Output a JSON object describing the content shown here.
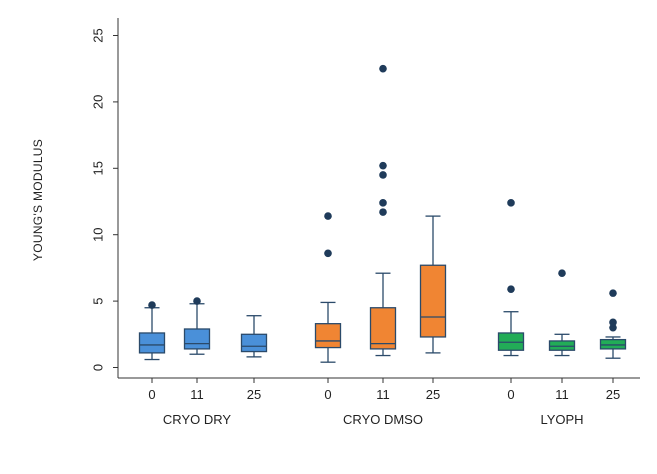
{
  "chart_data": {
    "type": "box",
    "title": "",
    "xlabel": "",
    "ylabel": "YOUNG'S MODULUS",
    "ylim": [
      -0.8,
      26
    ],
    "yticks": [
      0,
      5,
      10,
      15,
      20,
      25
    ],
    "grid": false,
    "legend": "none",
    "groups": [
      {
        "name": "CRYO DRY",
        "color": "#4a90d9",
        "boxes": [
          {
            "category": "0",
            "whisker_low": 0.6,
            "q1": 1.1,
            "median": 1.7,
            "q3": 2.6,
            "whisker_high": 4.5,
            "outliers": [
              4.7
            ]
          },
          {
            "category": "11",
            "whisker_low": 1.0,
            "q1": 1.4,
            "median": 1.8,
            "q3": 2.9,
            "whisker_high": 4.8,
            "outliers": [
              5.0
            ]
          },
          {
            "category": "25",
            "whisker_low": 0.8,
            "q1": 1.2,
            "median": 1.6,
            "q3": 2.5,
            "whisker_high": 3.9,
            "outliers": []
          }
        ]
      },
      {
        "name": "CRYO DMSO",
        "color": "#f08533",
        "boxes": [
          {
            "category": "0",
            "whisker_low": 0.4,
            "q1": 1.5,
            "median": 2.0,
            "q3": 3.3,
            "whisker_high": 4.9,
            "outliers": [
              8.6,
              11.4
            ]
          },
          {
            "category": "11",
            "whisker_low": 0.9,
            "q1": 1.4,
            "median": 1.8,
            "q3": 4.5,
            "whisker_high": 7.1,
            "outliers": [
              11.7,
              12.4,
              14.5,
              15.2,
              22.5
            ]
          },
          {
            "category": "25",
            "whisker_low": 1.1,
            "q1": 2.3,
            "median": 3.8,
            "q3": 7.7,
            "whisker_high": 11.4,
            "outliers": []
          }
        ]
      },
      {
        "name": "LYOPH",
        "color": "#22ac57",
        "boxes": [
          {
            "category": "0",
            "whisker_low": 0.9,
            "q1": 1.3,
            "median": 1.9,
            "q3": 2.6,
            "whisker_high": 4.2,
            "outliers": [
              5.9,
              12.4
            ]
          },
          {
            "category": "11",
            "whisker_low": 0.9,
            "q1": 1.3,
            "median": 1.6,
            "q3": 2.0,
            "whisker_high": 2.5,
            "outliers": [
              7.1
            ]
          },
          {
            "category": "25",
            "whisker_low": 0.7,
            "q1": 1.4,
            "median": 1.7,
            "q3": 2.1,
            "whisker_high": 2.3,
            "outliers": [
              3.0,
              3.4,
              5.6
            ]
          }
        ]
      }
    ]
  }
}
